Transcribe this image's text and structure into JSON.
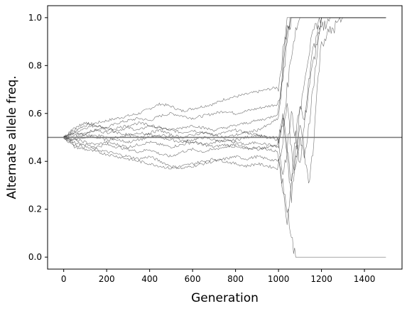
{
  "chart_data": {
    "type": "line",
    "title": "",
    "xlabel": "Generation",
    "ylabel": "Alternate allele freq.",
    "xlim": [
      -75,
      1575
    ],
    "ylim": [
      -0.05,
      1.05
    ],
    "xticks": [
      0,
      200,
      400,
      600,
      800,
      1000,
      1200,
      1400
    ],
    "yticks": [
      0.0,
      0.2,
      0.4,
      0.6,
      0.8,
      1.0
    ],
    "ytick_labels": [
      "0.0",
      "0.2",
      "0.4",
      "0.6",
      "0.8",
      "1.0"
    ],
    "reference_line": {
      "y": 0.5,
      "color": "#777777"
    },
    "line_color": "#000000",
    "series": [
      {
        "x": [
          0,
          50,
          100,
          150,
          200,
          250,
          300,
          350,
          400,
          450,
          500,
          550,
          600,
          650,
          700,
          750,
          800,
          850,
          900,
          950,
          1000,
          1020,
          1040,
          1060,
          1080,
          1100,
          1150,
          1200,
          1250,
          1300,
          1350,
          1400,
          1450,
          1500
        ],
        "y": [
          0.5,
          0.53,
          0.55,
          0.56,
          0.57,
          0.58,
          0.59,
          0.6,
          0.62,
          0.64,
          0.63,
          0.61,
          0.62,
          0.63,
          0.64,
          0.66,
          0.67,
          0.68,
          0.69,
          0.7,
          0.71,
          0.85,
          1.0,
          1.0,
          1.0,
          1.0,
          1.0,
          1.0,
          1.0,
          1.0,
          1.0,
          1.0,
          1.0,
          1.0
        ]
      },
      {
        "x": [
          0,
          50,
          100,
          150,
          200,
          250,
          300,
          350,
          400,
          450,
          500,
          550,
          600,
          650,
          700,
          750,
          800,
          850,
          900,
          950,
          1000,
          1020,
          1040,
          1060,
          1080,
          1100,
          1150,
          1200,
          1250,
          1300,
          1350,
          1400,
          1450,
          1500
        ],
        "y": [
          0.5,
          0.52,
          0.54,
          0.55,
          0.54,
          0.56,
          0.57,
          0.58,
          0.57,
          0.59,
          0.6,
          0.59,
          0.58,
          0.59,
          0.6,
          0.61,
          0.6,
          0.61,
          0.62,
          0.63,
          0.64,
          0.75,
          0.9,
          1.0,
          1.0,
          1.0,
          1.0,
          1.0,
          1.0,
          1.0,
          1.0,
          1.0,
          1.0,
          1.0
        ]
      },
      {
        "x": [
          0,
          50,
          100,
          150,
          200,
          250,
          300,
          350,
          400,
          450,
          500,
          550,
          600,
          650,
          700,
          750,
          800,
          850,
          900,
          950,
          1000,
          1020,
          1040,
          1060,
          1080,
          1100,
          1120,
          1140,
          1160,
          1180,
          1200,
          1220,
          1240,
          1300,
          1400,
          1500
        ],
        "y": [
          0.5,
          0.51,
          0.52,
          0.53,
          0.52,
          0.53,
          0.54,
          0.53,
          0.55,
          0.54,
          0.53,
          0.52,
          0.53,
          0.52,
          0.51,
          0.52,
          0.53,
          0.52,
          0.51,
          0.5,
          0.5,
          0.35,
          0.45,
          0.6,
          0.5,
          0.4,
          0.55,
          0.7,
          0.8,
          0.9,
          0.95,
          0.98,
          1.0,
          1.0,
          1.0,
          1.0
        ]
      },
      {
        "x": [
          0,
          50,
          100,
          150,
          200,
          250,
          300,
          350,
          400,
          450,
          500,
          550,
          600,
          650,
          700,
          750,
          800,
          850,
          900,
          950,
          1000,
          1020,
          1040,
          1060,
          1080,
          1100,
          1120,
          1140,
          1160,
          1180,
          1200,
          1250,
          1300,
          1400,
          1500
        ],
        "y": [
          0.5,
          0.5,
          0.51,
          0.5,
          0.49,
          0.5,
          0.51,
          0.52,
          0.51,
          0.5,
          0.49,
          0.48,
          0.49,
          0.5,
          0.49,
          0.48,
          0.49,
          0.5,
          0.51,
          0.5,
          0.49,
          0.6,
          0.45,
          0.3,
          0.5,
          0.65,
          0.55,
          0.75,
          0.85,
          0.95,
          1.0,
          1.0,
          1.0,
          1.0,
          1.0
        ]
      },
      {
        "x": [
          0,
          50,
          100,
          150,
          200,
          250,
          300,
          350,
          400,
          450,
          500,
          550,
          600,
          650,
          700,
          750,
          800,
          850,
          900,
          950,
          1000,
          1020,
          1040,
          1060,
          1080,
          1100,
          1120,
          1140,
          1160,
          1180,
          1200,
          1300,
          1400,
          1500
        ],
        "y": [
          0.5,
          0.49,
          0.48,
          0.47,
          0.48,
          0.47,
          0.46,
          0.47,
          0.48,
          0.47,
          0.46,
          0.47,
          0.48,
          0.47,
          0.46,
          0.47,
          0.46,
          0.45,
          0.46,
          0.45,
          0.44,
          0.3,
          0.15,
          0.3,
          0.45,
          0.6,
          0.75,
          0.85,
          0.92,
          0.98,
          1.0,
          1.0,
          1.0,
          1.0
        ]
      },
      {
        "x": [
          0,
          50,
          100,
          150,
          200,
          250,
          300,
          350,
          400,
          450,
          500,
          550,
          600,
          650,
          700,
          750,
          800,
          850,
          900,
          950,
          1000,
          1020,
          1040,
          1060,
          1080,
          1100,
          1150,
          1200,
          1300,
          1400,
          1500
        ],
        "y": [
          0.5,
          0.48,
          0.47,
          0.46,
          0.47,
          0.46,
          0.45,
          0.44,
          0.45,
          0.43,
          0.42,
          0.44,
          0.45,
          0.44,
          0.45,
          0.46,
          0.47,
          0.46,
          0.45,
          0.46,
          0.47,
          0.55,
          0.7,
          0.85,
          0.95,
          1.0,
          1.0,
          1.0,
          1.0,
          1.0,
          1.0
        ]
      },
      {
        "x": [
          0,
          50,
          100,
          150,
          200,
          250,
          300,
          350,
          400,
          450,
          500,
          550,
          600,
          650,
          700,
          750,
          800,
          850,
          900,
          950,
          1000,
          1020,
          1040,
          1060,
          1070,
          1080,
          1100,
          1200,
          1300,
          1400,
          1500
        ],
        "y": [
          0.5,
          0.47,
          0.46,
          0.45,
          0.44,
          0.43,
          0.42,
          0.41,
          0.42,
          0.4,
          0.38,
          0.37,
          0.38,
          0.39,
          0.4,
          0.41,
          0.42,
          0.41,
          0.42,
          0.41,
          0.4,
          0.3,
          0.2,
          0.1,
          0.03,
          0.0,
          0.0,
          0.0,
          0.0,
          0.0,
          0.0
        ]
      },
      {
        "x": [
          0,
          50,
          100,
          150,
          200,
          250,
          300,
          350,
          400,
          450,
          500,
          550,
          600,
          650,
          700,
          750,
          800,
          850,
          900,
          950,
          1000,
          1020,
          1040,
          1060,
          1080,
          1100,
          1120,
          1140,
          1160,
          1180,
          1200,
          1300,
          1400,
          1500
        ],
        "y": [
          0.5,
          0.46,
          0.45,
          0.44,
          0.43,
          0.42,
          0.41,
          0.4,
          0.39,
          0.38,
          0.37,
          0.38,
          0.39,
          0.4,
          0.41,
          0.4,
          0.39,
          0.38,
          0.39,
          0.38,
          0.37,
          0.5,
          0.65,
          0.45,
          0.35,
          0.5,
          0.4,
          0.55,
          0.7,
          0.85,
          1.0,
          1.0,
          1.0,
          1.0
        ]
      },
      {
        "x": [
          0,
          50,
          100,
          150,
          200,
          250,
          300,
          350,
          400,
          450,
          500,
          550,
          600,
          650,
          700,
          750,
          800,
          850,
          900,
          950,
          1000,
          1020,
          1040,
          1060,
          1080,
          1100,
          1200,
          1300,
          1400,
          1500
        ],
        "y": [
          0.5,
          0.52,
          0.51,
          0.53,
          0.54,
          0.52,
          0.51,
          0.5,
          0.52,
          0.53,
          0.51,
          0.5,
          0.51,
          0.52,
          0.51,
          0.5,
          0.51,
          0.52,
          0.53,
          0.55,
          0.58,
          0.75,
          0.95,
          1.0,
          1.0,
          1.0,
          1.0,
          1.0,
          1.0,
          1.0
        ]
      },
      {
        "x": [
          0,
          50,
          100,
          150,
          200,
          250,
          300,
          350,
          400,
          450,
          500,
          550,
          600,
          650,
          700,
          750,
          800,
          850,
          900,
          950,
          1000,
          1020,
          1040,
          1060,
          1080,
          1100,
          1120,
          1140,
          1160,
          1180,
          1200,
          1300,
          1400,
          1500
        ],
        "y": [
          0.5,
          0.49,
          0.5,
          0.51,
          0.5,
          0.49,
          0.48,
          0.49,
          0.5,
          0.51,
          0.5,
          0.49,
          0.48,
          0.47,
          0.48,
          0.49,
          0.48,
          0.47,
          0.48,
          0.47,
          0.46,
          0.6,
          0.4,
          0.25,
          0.4,
          0.55,
          0.45,
          0.3,
          0.45,
          0.7,
          0.9,
          1.0,
          1.0,
          1.0
        ]
      },
      {
        "x": [
          0,
          50,
          100,
          150,
          200,
          250,
          300,
          350,
          400,
          450,
          500,
          550,
          600,
          650,
          700,
          750,
          800,
          850,
          900,
          950,
          1000,
          1020,
          1040,
          1060,
          1080,
          1100,
          1200,
          1300,
          1400,
          1500
        ],
        "y": [
          0.5,
          0.54,
          0.56,
          0.55,
          0.53,
          0.54,
          0.55,
          0.56,
          0.55,
          0.54,
          0.53,
          0.54,
          0.55,
          0.54,
          0.53,
          0.54,
          0.55,
          0.56,
          0.57,
          0.58,
          0.6,
          0.8,
          0.98,
          1.0,
          1.0,
          1.0,
          1.0,
          1.0,
          1.0,
          1.0
        ]
      }
    ]
  }
}
